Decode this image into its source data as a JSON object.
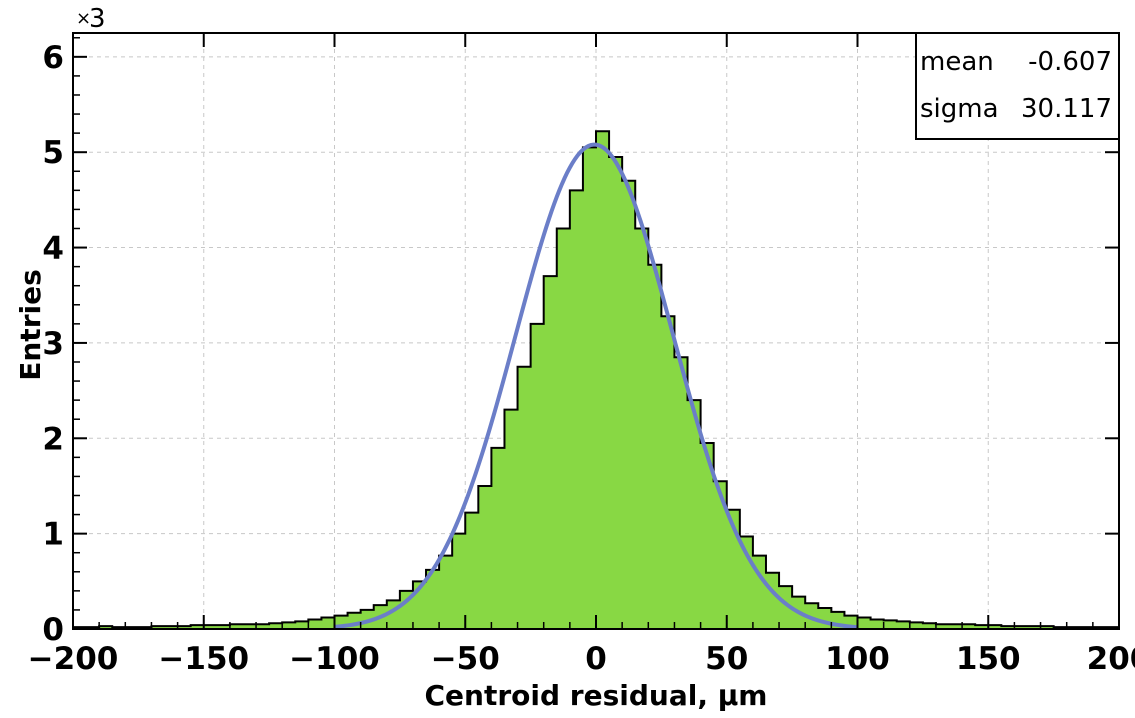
{
  "chart_data": {
    "type": "histogram",
    "xlabel": "Centroid residual, μm",
    "ylabel": "Entries",
    "y_multiplier_label": "3",
    "y_multiplier_prefix": "×",
    "xlim": [
      -200,
      200
    ],
    "ylim": [
      0,
      6.25
    ],
    "x_ticks": [
      -200,
      -150,
      -100,
      -50,
      0,
      50,
      100,
      150,
      200
    ],
    "y_ticks": [
      0,
      1,
      2,
      3,
      4,
      5,
      6
    ],
    "grid": true,
    "bin_width": 5,
    "bins": [
      {
        "x": -200,
        "y": 0.02
      },
      {
        "x": -195,
        "y": 0.02
      },
      {
        "x": -190,
        "y": 0.03
      },
      {
        "x": -185,
        "y": 0.02
      },
      {
        "x": -180,
        "y": 0.02
      },
      {
        "x": -175,
        "y": 0.02
      },
      {
        "x": -170,
        "y": 0.03
      },
      {
        "x": -165,
        "y": 0.03
      },
      {
        "x": -160,
        "y": 0.03
      },
      {
        "x": -155,
        "y": 0.04
      },
      {
        "x": -150,
        "y": 0.04
      },
      {
        "x": -145,
        "y": 0.04
      },
      {
        "x": -140,
        "y": 0.05
      },
      {
        "x": -135,
        "y": 0.05
      },
      {
        "x": -130,
        "y": 0.05
      },
      {
        "x": -125,
        "y": 0.06
      },
      {
        "x": -120,
        "y": 0.07
      },
      {
        "x": -115,
        "y": 0.08
      },
      {
        "x": -110,
        "y": 0.1
      },
      {
        "x": -105,
        "y": 0.12
      },
      {
        "x": -100,
        "y": 0.14
      },
      {
        "x": -95,
        "y": 0.17
      },
      {
        "x": -90,
        "y": 0.2
      },
      {
        "x": -85,
        "y": 0.25
      },
      {
        "x": -80,
        "y": 0.3
      },
      {
        "x": -75,
        "y": 0.4
      },
      {
        "x": -70,
        "y": 0.5
      },
      {
        "x": -65,
        "y": 0.62
      },
      {
        "x": -60,
        "y": 0.77
      },
      {
        "x": -55,
        "y": 1.0
      },
      {
        "x": -50,
        "y": 1.22
      },
      {
        "x": -45,
        "y": 1.5
      },
      {
        "x": -40,
        "y": 1.9
      },
      {
        "x": -35,
        "y": 2.3
      },
      {
        "x": -30,
        "y": 2.75
      },
      {
        "x": -25,
        "y": 3.2
      },
      {
        "x": -20,
        "y": 3.7
      },
      {
        "x": -15,
        "y": 4.2
      },
      {
        "x": -10,
        "y": 4.6
      },
      {
        "x": -5,
        "y": 5.05
      },
      {
        "x": 0,
        "y": 5.22
      },
      {
        "x": 5,
        "y": 4.95
      },
      {
        "x": 10,
        "y": 4.7
      },
      {
        "x": 15,
        "y": 4.2
      },
      {
        "x": 20,
        "y": 3.82
      },
      {
        "x": 25,
        "y": 3.28
      },
      {
        "x": 30,
        "y": 2.85
      },
      {
        "x": 35,
        "y": 2.4
      },
      {
        "x": 40,
        "y": 1.95
      },
      {
        "x": 45,
        "y": 1.55
      },
      {
        "x": 50,
        "y": 1.25
      },
      {
        "x": 55,
        "y": 0.97
      },
      {
        "x": 60,
        "y": 0.77
      },
      {
        "x": 65,
        "y": 0.59
      },
      {
        "x": 70,
        "y": 0.45
      },
      {
        "x": 75,
        "y": 0.34
      },
      {
        "x": 80,
        "y": 0.27
      },
      {
        "x": 85,
        "y": 0.22
      },
      {
        "x": 90,
        "y": 0.18
      },
      {
        "x": 95,
        "y": 0.14
      },
      {
        "x": 100,
        "y": 0.12
      },
      {
        "x": 105,
        "y": 0.1
      },
      {
        "x": 110,
        "y": 0.09
      },
      {
        "x": 115,
        "y": 0.08
      },
      {
        "x": 120,
        "y": 0.07
      },
      {
        "x": 125,
        "y": 0.06
      },
      {
        "x": 130,
        "y": 0.05
      },
      {
        "x": 135,
        "y": 0.05
      },
      {
        "x": 140,
        "y": 0.05
      },
      {
        "x": 145,
        "y": 0.04
      },
      {
        "x": 150,
        "y": 0.04
      },
      {
        "x": 155,
        "y": 0.03
      },
      {
        "x": 160,
        "y": 0.03
      },
      {
        "x": 165,
        "y": 0.03
      },
      {
        "x": 170,
        "y": 0.03
      },
      {
        "x": 175,
        "y": 0.02
      },
      {
        "x": 180,
        "y": 0.02
      },
      {
        "x": 185,
        "y": 0.02
      },
      {
        "x": 190,
        "y": 0.02
      },
      {
        "x": 195,
        "y": 0.02
      }
    ],
    "fit": {
      "type": "gaussian",
      "amplitude": 5.08,
      "mean": -0.607,
      "sigma": 30.117,
      "x_range": [
        -100,
        100
      ]
    },
    "stats": [
      {
        "label": "mean",
        "value": "-0.607"
      },
      {
        "label": "sigma",
        "value": "30.117"
      }
    ],
    "stats_placement": "top-right",
    "colors": {
      "fill": "#88d844",
      "outline": "#000000",
      "fit_line": "#6b7ec8",
      "grid": "#c8c8c8"
    }
  }
}
